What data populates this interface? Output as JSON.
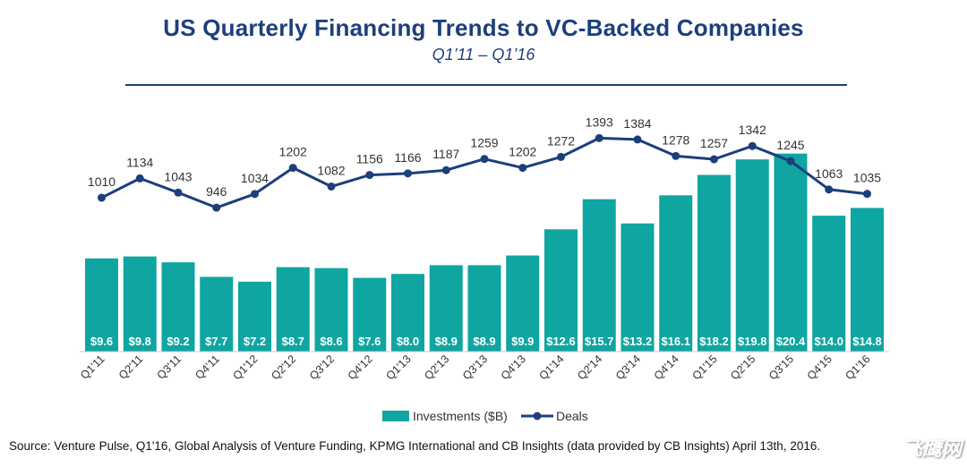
{
  "header": {
    "title": "US Quarterly Financing Trends to VC-Backed Companies",
    "subtitle": "Q1’11 – Q1’16"
  },
  "source_note": "Source: Venture Pulse, Q1'16, Global Analysis of Venture Funding, KPMG International and CB Insights (data provided by CB Insights) April 13th, 2016.",
  "watermark": "飞鹰网",
  "colors": {
    "bar": "#0fa5a1",
    "line": "#1c3f7c",
    "title": "#1c3f7c",
    "axis": "#c8c8c8"
  },
  "chart_data": {
    "type": "bar+line",
    "categories": [
      "Q1'11",
      "Q2'11",
      "Q3'11",
      "Q4'11",
      "Q1'12",
      "Q2'12",
      "Q3'12",
      "Q4'12",
      "Q1'13",
      "Q2'13",
      "Q3'13",
      "Q4'13",
      "Q1'14",
      "Q2'14",
      "Q3'14",
      "Q4'14",
      "Q1'15",
      "Q2'15",
      "Q3'15",
      "Q4'15",
      "Q1'16"
    ],
    "series": [
      {
        "name": "Investments ($B)",
        "type": "bar",
        "values": [
          9.6,
          9.8,
          9.2,
          7.7,
          7.2,
          8.7,
          8.6,
          7.6,
          8.0,
          8.9,
          8.9,
          9.9,
          12.6,
          15.7,
          13.2,
          16.1,
          18.2,
          19.8,
          20.4,
          14.0,
          14.8
        ],
        "labels": [
          "$9.6",
          "$9.8",
          "$9.2",
          "$7.7",
          "$7.2",
          "$8.7",
          "$8.6",
          "$7.6",
          "$8.0",
          "$8.9",
          "$8.9",
          "$9.9",
          "$12.6",
          "$15.7",
          "$13.2",
          "$16.1",
          "$18.2",
          "$19.8",
          "$20.4",
          "$14.0",
          "$14.8"
        ]
      },
      {
        "name": "Deals",
        "type": "line",
        "values": [
          1010,
          1134,
          1043,
          946,
          1034,
          1202,
          1082,
          1156,
          1166,
          1187,
          1259,
          1202,
          1272,
          1393,
          1384,
          1278,
          1257,
          1342,
          1245,
          1063,
          1035
        ]
      }
    ],
    "legend": [
      "Investments ($B)",
      "Deals"
    ],
    "legend_position": "bottom-center"
  }
}
